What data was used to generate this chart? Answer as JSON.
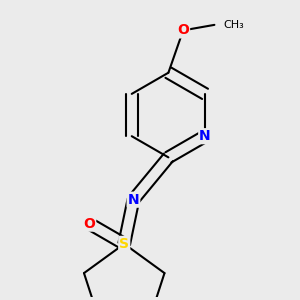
{
  "background_color": "#EBEBEB",
  "atom_colors": {
    "C": "#000000",
    "N": "#0000FF",
    "O": "#FF0000",
    "S": "#FFD700"
  },
  "bond_color": "#000000",
  "bond_width": 1.5,
  "font_size_atoms": 10
}
